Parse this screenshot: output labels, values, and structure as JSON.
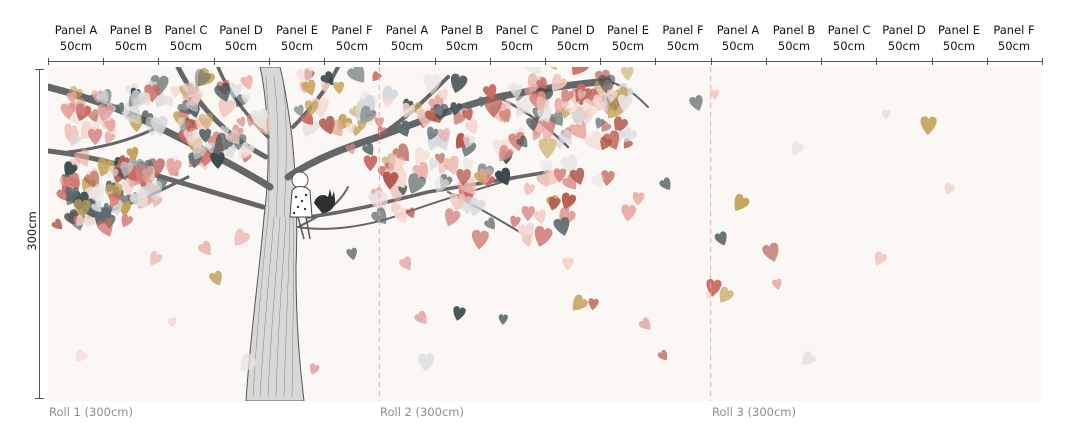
{
  "panel_header": {
    "panels": [
      {
        "name": "Panel A",
        "width": "50cm"
      },
      {
        "name": "Panel B",
        "width": "50cm"
      },
      {
        "name": "Panel C",
        "width": "50cm"
      },
      {
        "name": "Panel D",
        "width": "50cm"
      },
      {
        "name": "Panel E",
        "width": "50cm"
      },
      {
        "name": "Panel F",
        "width": "50cm"
      },
      {
        "name": "Panel A",
        "width": "50cm"
      },
      {
        "name": "Panel B",
        "width": "50cm"
      },
      {
        "name": "Panel C",
        "width": "50cm"
      },
      {
        "name": "Panel D",
        "width": "50cm"
      },
      {
        "name": "Panel E",
        "width": "50cm"
      },
      {
        "name": "Panel F",
        "width": "50cm"
      },
      {
        "name": "Panel A",
        "width": "50cm"
      },
      {
        "name": "Panel B",
        "width": "50cm"
      },
      {
        "name": "Panel C",
        "width": "50cm"
      },
      {
        "name": "Panel D",
        "width": "50cm"
      },
      {
        "name": "Panel E",
        "width": "50cm"
      },
      {
        "name": "Panel F",
        "width": "50cm"
      }
    ]
  },
  "height_dimension": "300cm",
  "rolls": [
    {
      "label": "Roll 1 (300cm)"
    },
    {
      "label": "Roll 2 (300cm)"
    },
    {
      "label": "Roll 3 (300cm)"
    }
  ],
  "colors": {
    "wall_background": "#faf7f5",
    "roll_divider": "#f2a9b4",
    "dimension_line": "#555555",
    "roll_label_text": "#8d8d8d",
    "leaf_palette": [
      "#e8a79f",
      "#d98a86",
      "#c96a63",
      "#f1c6bd",
      "#e7e3e0",
      "#d4d8da",
      "#3b4a4d",
      "#5e6c6e",
      "#b35a4f",
      "#c4a35a",
      "#f5d9d2"
    ]
  },
  "illustration": {
    "subject": "hand-drawn tree with falling watercolor heart leaves",
    "figure": "girl sitting on branch with cat"
  }
}
